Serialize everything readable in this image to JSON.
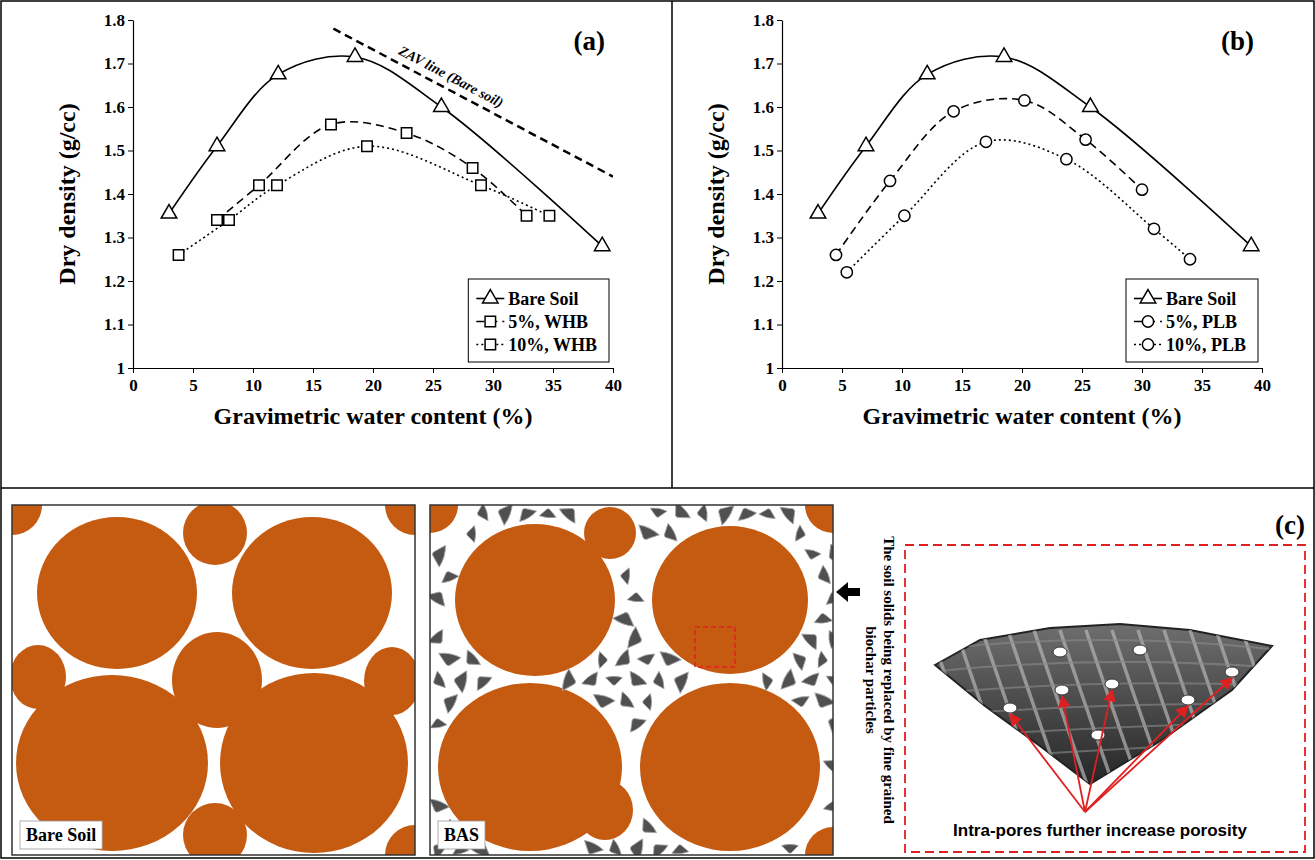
{
  "chart_data": [
    {
      "type": "line",
      "title": "(a)",
      "x_label": "Gravimetric water content (%)",
      "y_label": "Dry density (g/cc)",
      "xlim": [
        0,
        40
      ],
      "ylim": [
        1,
        1.8
      ],
      "xticks": [
        0,
        5,
        10,
        15,
        20,
        25,
        30,
        35,
        40
      ],
      "yticks": [
        1,
        1.1,
        1.2,
        1.3,
        1.4,
        1.5,
        1.6,
        1.7,
        1.8
      ],
      "grid": false,
      "legend": "lower right",
      "series": [
        {
          "name": "Bare Soil",
          "color": "#000000",
          "marker": "triangle",
          "line_style": "solid",
          "x": [
            3,
            7,
            12.1,
            18.5,
            25.7,
            39.1
          ],
          "values": [
            1.355,
            1.51,
            1.675,
            1.715,
            1.6,
            1.28
          ]
        },
        {
          "name": "5%, WHB",
          "color": "#000000",
          "marker": "square",
          "line_style": "dashed",
          "x": [
            7,
            10.5,
            16.5,
            22.8,
            28.3,
            32.8
          ],
          "values": [
            1.34,
            1.42,
            1.56,
            1.54,
            1.46,
            1.35
          ]
        },
        {
          "name": "10%, WHB",
          "color": "#000000",
          "marker": "square",
          "line_style": "dotted",
          "x": [
            3.8,
            8,
            12,
            19.5,
            29,
            34.7
          ],
          "values": [
            1.26,
            1.34,
            1.42,
            1.51,
            1.42,
            1.35
          ]
        }
      ],
      "annotations": [
        {
          "text": "ZAV line (Bare soil)",
          "line_style": "dashed",
          "x": [
            16.7,
            40
          ],
          "y": [
            1.78,
            1.44
          ]
        }
      ]
    },
    {
      "type": "line",
      "title": "(b)",
      "x_label": "Gravimetric water content (%)",
      "y_label": "Dry density (g/cc)",
      "xlim": [
        0,
        40
      ],
      "ylim": [
        1,
        1.8
      ],
      "xticks": [
        0,
        5,
        10,
        15,
        20,
        25,
        30,
        35,
        40
      ],
      "yticks": [
        1,
        1.1,
        1.2,
        1.3,
        1.4,
        1.5,
        1.6,
        1.7,
        1.8
      ],
      "grid": false,
      "legend": "lower right",
      "series": [
        {
          "name": "Bare Soil",
          "color": "#000000",
          "marker": "triangle",
          "line_style": "solid",
          "x": [
            3,
            7,
            12.1,
            18.5,
            25.7,
            39.1
          ],
          "values": [
            1.355,
            1.51,
            1.675,
            1.715,
            1.6,
            1.28
          ]
        },
        {
          "name": "5%, PLB",
          "color": "#000000",
          "marker": "circle",
          "line_style": "dashed",
          "x": [
            4.5,
            9,
            14.3,
            20.2,
            25.3,
            30
          ],
          "values": [
            1.26,
            1.43,
            1.59,
            1.615,
            1.525,
            1.41
          ]
        },
        {
          "name": "10%, PLB",
          "color": "#000000",
          "marker": "circle",
          "line_style": "dotted",
          "x": [
            5.4,
            10.2,
            17,
            23.7,
            31,
            34
          ],
          "values": [
            1.22,
            1.35,
            1.52,
            1.48,
            1.32,
            1.25
          ]
        }
      ]
    }
  ],
  "diagram": {
    "label": "(c)",
    "panels": [
      {
        "label": "Bare Soil"
      },
      {
        "label": "BAS"
      }
    ],
    "arrow_text": "The soil solids being replaced by fine grained biochar particles",
    "inset_label": "Intra-pores further increase porosity"
  }
}
